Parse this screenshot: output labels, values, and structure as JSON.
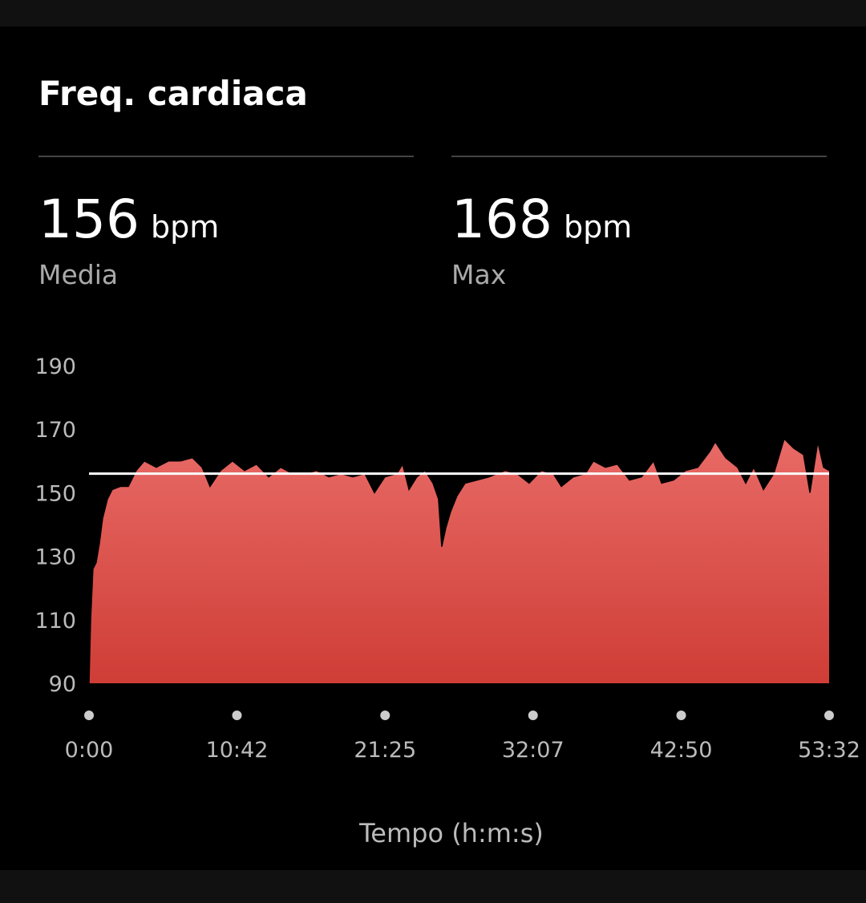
{
  "title": "Freq. cardiaca",
  "stats": [
    {
      "value": 156,
      "unit": "bpm",
      "label": "Media"
    },
    {
      "value": 168,
      "unit": "bpm",
      "label": "Max"
    }
  ],
  "chart_data": {
    "type": "area",
    "x_label": "Tempo (h:m:s)",
    "x": [
      0,
      7,
      17,
      31,
      45,
      59,
      80,
      101,
      136,
      171,
      205,
      240,
      292,
      345,
      397,
      449,
      491,
      525,
      571,
      623,
      675,
      727,
      780,
      832,
      884,
      936,
      988,
      1041,
      1093,
      1145,
      1197,
      1239,
      1284,
      1336,
      1361,
      1389,
      1423,
      1458,
      1493,
      1517,
      1531,
      1549,
      1569,
      1597,
      1632,
      1684,
      1736,
      1806,
      1858,
      1910,
      1963,
      2015,
      2050,
      2102,
      2154,
      2189,
      2241,
      2293,
      2346,
      2398,
      2450,
      2485,
      2537,
      2589,
      2642,
      2694,
      2718,
      2763,
      2815,
      2850,
      2885,
      2927,
      2972,
      3017,
      3059,
      3101,
      3129,
      3163,
      3188,
      3212
    ],
    "series": [
      {
        "name": "Freq. cardiaca",
        "color": "#e05a55",
        "values": [
          90,
          110,
          126,
          128,
          134,
          142,
          148,
          151,
          152,
          152,
          157,
          160,
          158,
          160,
          160,
          161,
          158,
          152,
          157,
          160,
          157,
          159,
          155,
          158,
          156,
          156,
          157,
          155,
          156,
          155,
          156,
          150,
          155,
          156,
          159,
          151,
          155,
          157,
          153,
          148,
          133,
          139,
          144,
          149,
          153,
          154,
          155,
          157,
          156,
          153,
          157,
          156,
          152,
          155,
          156,
          160,
          158,
          159,
          154,
          155,
          160,
          153,
          154,
          157,
          158,
          163,
          166,
          161,
          158,
          153,
          158,
          151,
          156,
          167,
          164,
          162,
          150,
          166,
          158,
          157
        ]
      }
    ],
    "xlim": [
      0,
      3212
    ],
    "xticks": [
      {
        "value": 0,
        "label": "0:00"
      },
      {
        "value": 642,
        "label": "10:42"
      },
      {
        "value": 1285,
        "label": "21:25"
      },
      {
        "value": 1927,
        "label": "32:07"
      },
      {
        "value": 2570,
        "label": "42:50"
      },
      {
        "value": 3212,
        "label": "53:32"
      }
    ],
    "ylim": [
      90,
      190
    ],
    "yticks": [
      90,
      110,
      130,
      150,
      170,
      190
    ],
    "grid": false
  }
}
